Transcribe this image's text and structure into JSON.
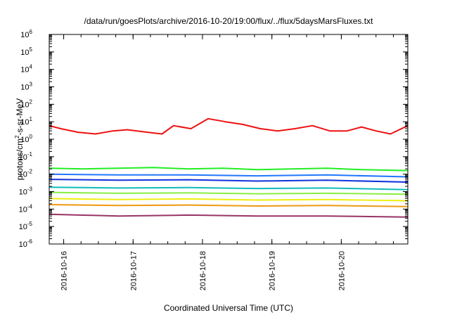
{
  "chart_data": {
    "type": "line",
    "title": "/data/run/goesPlots/archive/2016-10-20/19:00/flux/../flux/5daysMarsFluxes.txt",
    "xlabel": "Coordinated Universal Time (UTC)",
    "ylabel": {
      "prefix": "protons/cm",
      "sup": "2",
      "suffix": "-s-sr-MeV"
    },
    "x_type": "time",
    "xlim": [
      "2016-10-15T19:00",
      "2016-10-20T23:00"
    ],
    "ylim": [
      1e-06,
      1000000.0
    ],
    "y_scale": "log",
    "x_ticks": [
      "2016-10-16",
      "2016-10-17",
      "2016-10-18",
      "2016-10-19",
      "2016-10-20"
    ],
    "y_ticks": [
      {
        "base": "10",
        "exp": "-6"
      },
      {
        "base": "10",
        "exp": "-5"
      },
      {
        "base": "10",
        "exp": "-4"
      },
      {
        "base": "10",
        "exp": "-3"
      },
      {
        "base": "10",
        "exp": "-2"
      },
      {
        "base": "10",
        "exp": "-1"
      },
      {
        "base": "10",
        "exp": "0"
      },
      {
        "base": "10",
        "exp": "1"
      },
      {
        "base": "10",
        "exp": "2"
      },
      {
        "base": "10",
        "exp": "3"
      },
      {
        "base": "10",
        "exp": "4"
      },
      {
        "base": "10",
        "exp": "5"
      },
      {
        "base": "10",
        "exp": "6"
      }
    ],
    "series": [
      {
        "color": "#ee1111",
        "x": [
          "2016-10-15T19:00",
          "2016-10-15T23:00",
          "2016-10-16T05:00",
          "2016-10-16T11:00",
          "2016-10-16T17:00",
          "2016-10-16T22:00",
          "2016-10-17T05:00",
          "2016-10-17T10:00",
          "2016-10-17T14:00",
          "2016-10-17T20:00",
          "2016-10-18T02:00",
          "2016-10-18T08:00",
          "2016-10-18T14:00",
          "2016-10-18T20:00",
          "2016-10-19T02:00",
          "2016-10-19T08:00",
          "2016-10-19T14:00",
          "2016-10-19T20:00",
          "2016-10-20T02:00",
          "2016-10-20T07:00",
          "2016-10-20T12:00",
          "2016-10-20T17:00",
          "2016-10-20T23:00"
        ],
        "y": [
          6,
          4,
          2.5,
          2,
          3,
          3.5,
          2.5,
          2,
          6,
          4,
          15,
          10,
          7,
          4,
          3,
          4,
          6,
          3,
          3,
          5,
          3,
          2,
          6
        ]
      },
      {
        "color": "#22ee22",
        "x": [
          "2016-10-15T19:00",
          "2016-10-16T07:00",
          "2016-10-16T19:00",
          "2016-10-17T07:00",
          "2016-10-17T19:00",
          "2016-10-18T07:00",
          "2016-10-18T19:00",
          "2016-10-19T07:00",
          "2016-10-19T19:00",
          "2016-10-20T07:00",
          "2016-10-20T23:00"
        ],
        "y": [
          0.022,
          0.02,
          0.022,
          0.024,
          0.02,
          0.022,
          0.018,
          0.02,
          0.022,
          0.018,
          0.016
        ]
      },
      {
        "color": "#2277ff",
        "x": [
          "2016-10-15T19:00",
          "2016-10-16T19:00",
          "2016-10-17T19:00",
          "2016-10-18T19:00",
          "2016-10-19T19:00",
          "2016-10-20T23:00"
        ],
        "y": [
          0.01,
          0.009,
          0.009,
          0.008,
          0.009,
          0.007
        ]
      },
      {
        "color": "#1133dd",
        "x": [
          "2016-10-15T19:00",
          "2016-10-16T19:00",
          "2016-10-17T19:00",
          "2016-10-18T19:00",
          "2016-10-19T19:00",
          "2016-10-20T23:00"
        ],
        "y": [
          0.005,
          0.0045,
          0.0048,
          0.004,
          0.0045,
          0.0035
        ]
      },
      {
        "color": "#11bbbb",
        "x": [
          "2016-10-15T19:00",
          "2016-10-16T19:00",
          "2016-10-17T19:00",
          "2016-10-18T19:00",
          "2016-10-19T19:00",
          "2016-10-20T23:00"
        ],
        "y": [
          0.0018,
          0.0016,
          0.0017,
          0.0015,
          0.0016,
          0.0013
        ]
      },
      {
        "color": "#88ee44",
        "x": [
          "2016-10-15T19:00",
          "2016-10-16T19:00",
          "2016-10-17T19:00",
          "2016-10-18T19:00",
          "2016-10-19T19:00",
          "2016-10-20T23:00"
        ],
        "y": [
          0.0009,
          0.0008,
          0.00085,
          0.00075,
          0.0008,
          0.0007
        ]
      },
      {
        "color": "#eeee11",
        "x": [
          "2016-10-15T19:00",
          "2016-10-16T19:00",
          "2016-10-17T19:00",
          "2016-10-18T19:00",
          "2016-10-19T19:00",
          "2016-10-20T23:00"
        ],
        "y": [
          0.0004,
          0.00035,
          0.00038,
          0.00033,
          0.00035,
          0.0003
        ]
      },
      {
        "color": "#ee9911",
        "x": [
          "2016-10-15T19:00",
          "2016-10-16T19:00",
          "2016-10-17T19:00",
          "2016-10-18T19:00",
          "2016-10-19T19:00",
          "2016-10-20T23:00"
        ],
        "y": [
          0.00018,
          0.00016,
          0.00017,
          0.00015,
          0.00016,
          0.00014
        ]
      },
      {
        "color": "#993366",
        "x": [
          "2016-10-15T19:00",
          "2016-10-16T19:00",
          "2016-10-17T19:00",
          "2016-10-18T19:00",
          "2016-10-19T19:00",
          "2016-10-20T23:00"
        ],
        "y": [
          5e-05,
          4e-05,
          4.5e-05,
          4e-05,
          4e-05,
          3.5e-05
        ]
      }
    ],
    "grid": false,
    "legend": "none"
  }
}
